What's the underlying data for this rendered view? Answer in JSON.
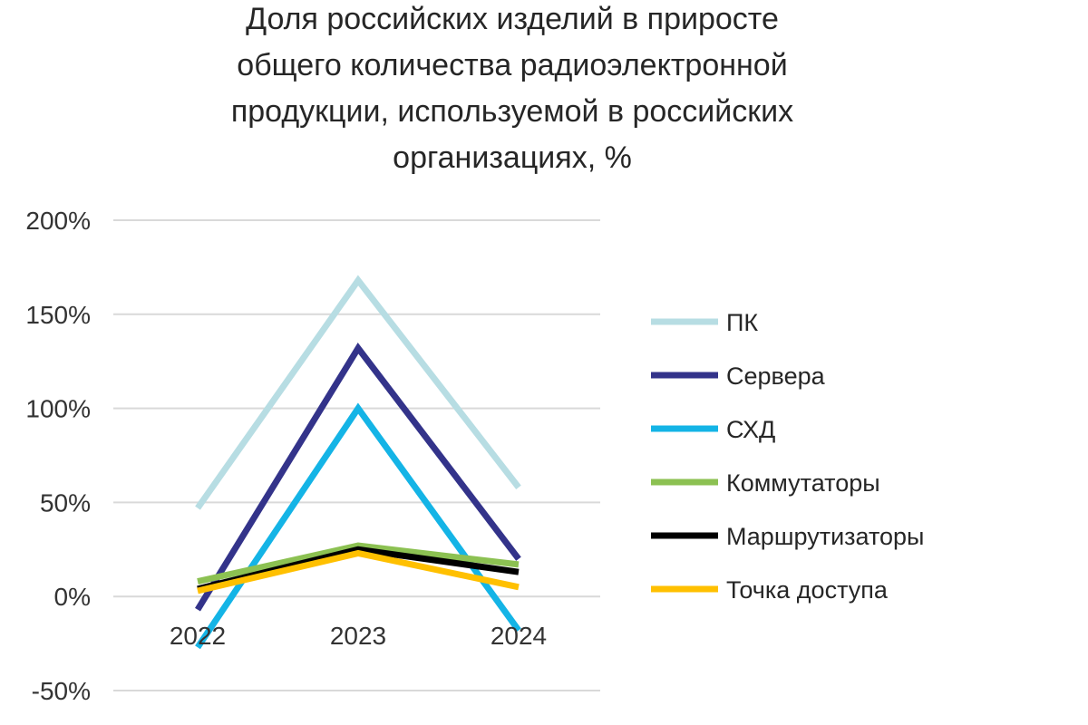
{
  "chart_data": {
    "type": "line",
    "title": "Доля российских изделий в приросте общего количества радиоэлектронной продукции, используемой в российских организациях, %",
    "title_lines": [
      "Доля российских изделий в приросте",
      "общего количества радиоэлектронной",
      "продукции, используемой в российских",
      "организациях, %"
    ],
    "categories": [
      "2022",
      "2023",
      "2024"
    ],
    "ylim": [
      -50,
      200
    ],
    "yticks": [
      -50,
      0,
      50,
      100,
      150,
      200
    ],
    "ytick_labels": [
      "-50%",
      "0%",
      "50%",
      "100%",
      "150%",
      "200%"
    ],
    "grid": true,
    "legend_position": "right",
    "series": [
      {
        "name": "ПК",
        "values": [
          47,
          168,
          58
        ],
        "color": "#b7dde3"
      },
      {
        "name": "Сервера",
        "values": [
          -7,
          132,
          20
        ],
        "color": "#33338a"
      },
      {
        "name": "СХД",
        "values": [
          -27,
          100,
          -18
        ],
        "color": "#14b4e6"
      },
      {
        "name": "Коммутаторы",
        "values": [
          8,
          27,
          17
        ],
        "color": "#8cc152"
      },
      {
        "name": "Маршрутизаторы",
        "values": [
          4,
          25,
          13
        ],
        "color": "#000000"
      },
      {
        "name": "Точка доступа",
        "values": [
          3,
          23,
          5
        ],
        "color": "#ffc000"
      }
    ]
  }
}
